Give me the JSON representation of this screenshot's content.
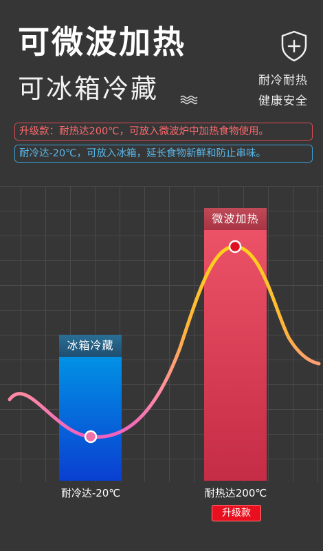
{
  "header": {
    "title": "可微波加热",
    "subtitle": "可冰箱冷藏",
    "features": [
      "耐冷耐热",
      "健康安全"
    ]
  },
  "notes": {
    "upgrade": "升级款：耐热达200℃，可放入微波炉中加热食物使用。",
    "cold": "耐冷达-20℃，可放入冰箱，延长食物新鲜和防止串味。"
  },
  "chart": {
    "cold_bar_label": "冰箱冷藏",
    "hot_bar_label": "微波加热",
    "cold_axis_label": "耐冷达-20℃",
    "hot_axis_label": "耐热达200℃",
    "badge": "升级款"
  },
  "colors": {
    "background": "#363636",
    "cold": "#0a6ee0",
    "hot": "#e84a60",
    "badge": "#e8101e"
  },
  "icons": [
    "shield-plus-icon",
    "waves-icon"
  ]
}
